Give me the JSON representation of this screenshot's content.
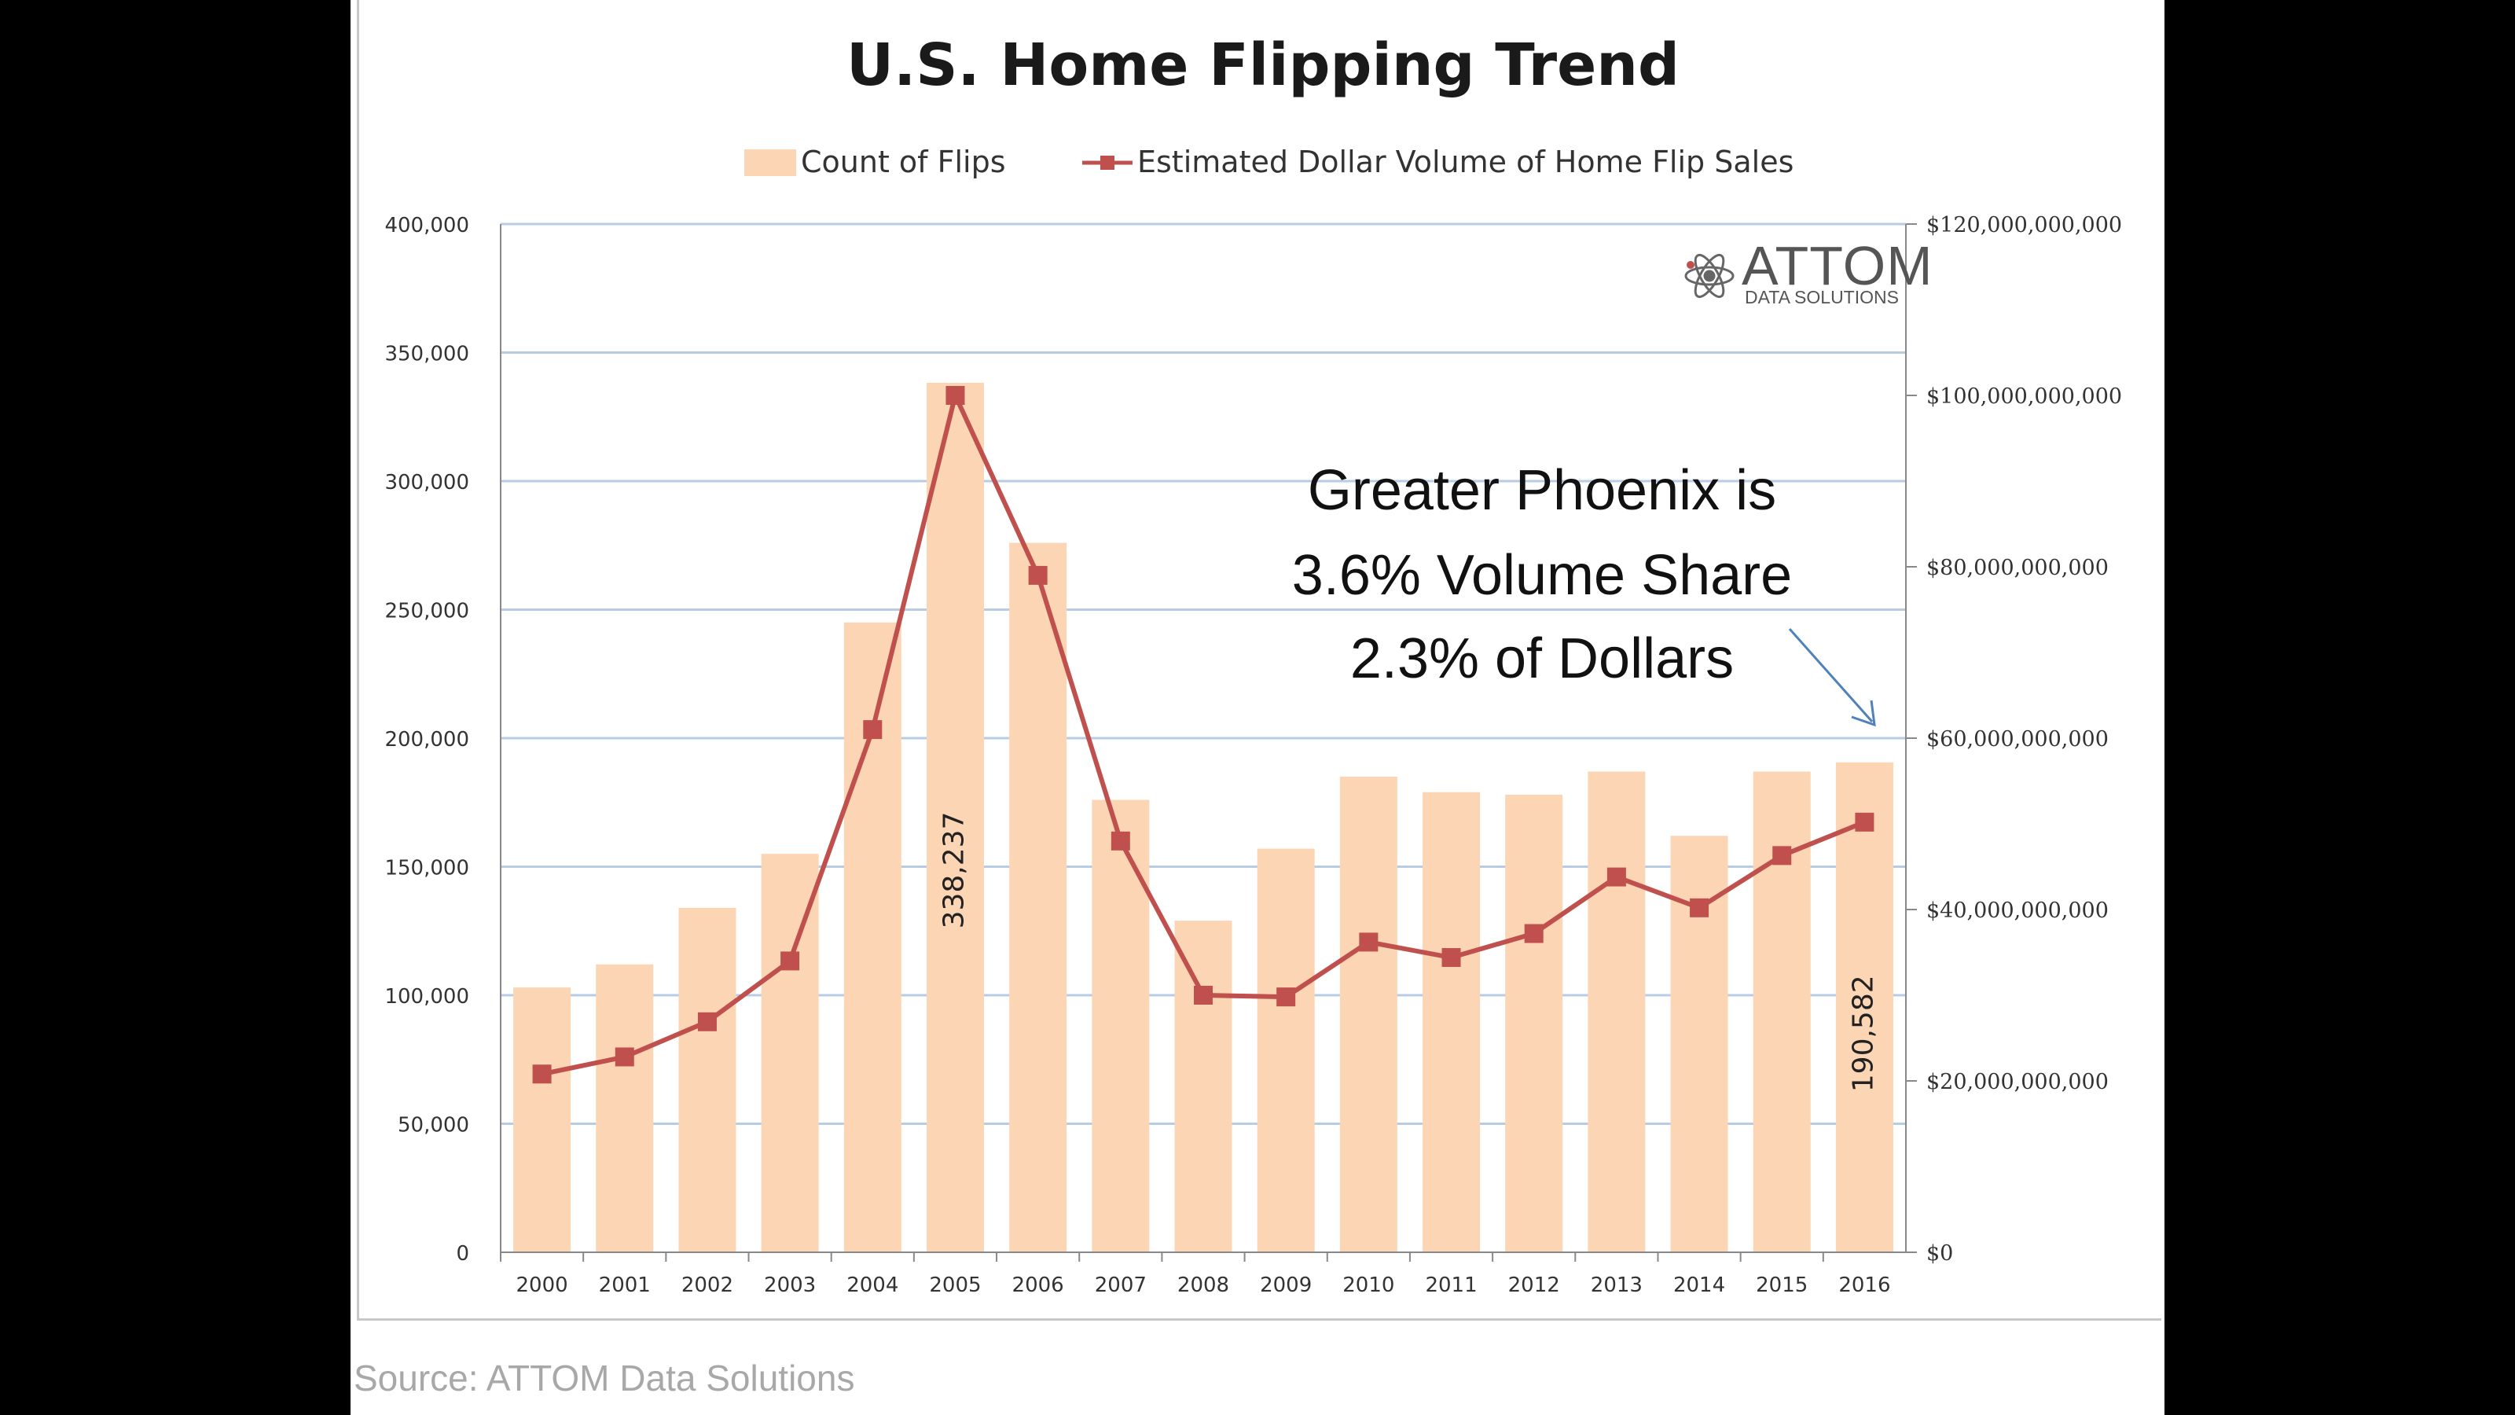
{
  "chart_data": {
    "type": "bar",
    "title": "U.S. Home Flipping Trend",
    "categories": [
      "2000",
      "2001",
      "2002",
      "2003",
      "2004",
      "2005",
      "2006",
      "2007",
      "2008",
      "2009",
      "2010",
      "2011",
      "2012",
      "2013",
      "2014",
      "2015",
      "2016"
    ],
    "series": [
      {
        "name": "Count of Flips",
        "type": "bar",
        "axis": "left",
        "color": "#fcd5b5",
        "values": [
          103000,
          112000,
          134000,
          155000,
          245000,
          338237,
          276000,
          176000,
          129000,
          157000,
          185000,
          179000,
          178000,
          187000,
          162000,
          187000,
          190582
        ]
      },
      {
        "name": "Estimated Dollar Volume of Home Flip Sales",
        "type": "line",
        "axis": "right",
        "color": "#c0504d",
        "marker": "square",
        "values": [
          20800000000,
          22800000000,
          26900000000,
          34000000000,
          61000000000,
          100000000000,
          79000000000,
          48000000000,
          30000000000,
          29800000000,
          36200000000,
          34400000000,
          37200000000,
          43800000000,
          40200000000,
          46300000000,
          50200000000
        ]
      }
    ],
    "y_left": {
      "ylim": [
        0,
        400000
      ],
      "ticks": [
        0,
        50000,
        100000,
        150000,
        200000,
        250000,
        300000,
        350000,
        400000
      ],
      "tick_labels": [
        "0",
        "50,000",
        "100,000",
        "150,000",
        "200,000",
        "250,000",
        "300,000",
        "350,000",
        "400,000"
      ]
    },
    "y_right": {
      "ylim": [
        0,
        120000000000
      ],
      "ticks": [
        0,
        20000000000,
        40000000000,
        60000000000,
        80000000000,
        100000000000,
        120000000000
      ],
      "tick_labels": [
        "$0",
        "$20,000,000,000",
        "$40,000,000,000",
        "$60,000,000,000",
        "$80,000,000,000",
        "$100,000,000,000",
        "$120,000,000,000"
      ]
    },
    "data_labels": [
      {
        "category": "2005",
        "text": "338,237"
      },
      {
        "category": "2016",
        "text": "190,582"
      }
    ],
    "annotation": {
      "lines": [
        "Greater Phoenix is",
        "3.6% Volume Share",
        "2.3% of Dollars"
      ],
      "arrow_target": "2016"
    },
    "grid": true,
    "legend_position": "top"
  },
  "logo": {
    "text": "ATTOM",
    "subtext": "DATA SOLUTIONS"
  },
  "source": "Source: ATTOM Data Solutions",
  "colors": {
    "bar": "#fcd5b5",
    "line": "#c0504d",
    "grid": "#b8cce4",
    "arrow": "#4f81bd"
  }
}
